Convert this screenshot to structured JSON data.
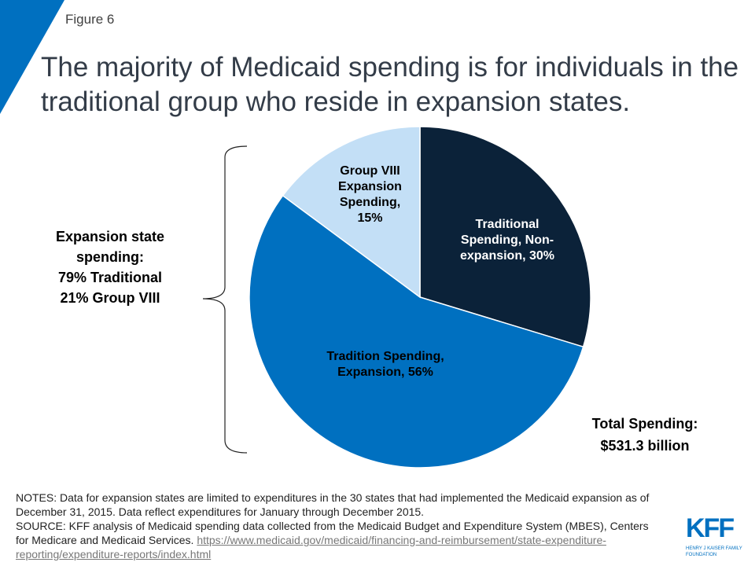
{
  "figure_label": "Figure 6",
  "title": "The majority of Medicaid spending is for individuals in the traditional group who reside in expansion states.",
  "colors": {
    "accent": "#0070c0",
    "navy": "#0b2239",
    "light_blue": "#c3dff6"
  },
  "chart_data": {
    "type": "pie",
    "start": "top",
    "direction": "clockwise",
    "slices": [
      {
        "label": "Traditional Spending, Non-expansion, 30%",
        "value": 30,
        "color": "#0b2239",
        "text_color": "#ffffff"
      },
      {
        "label": "Tradition Spending, Expansion, 56%",
        "value": 56,
        "color": "#0070c0",
        "text_color": "#000000"
      },
      {
        "label": "Group VIII Expansion Spending, 15%",
        "value": 15,
        "color": "#c3dff6",
        "text_color": "#000000"
      }
    ]
  },
  "annotations": {
    "bracket_label": [
      "Expansion state",
      "spending:",
      "79% Traditional",
      "21% Group VIII"
    ],
    "total": [
      "Total Spending:",
      "$531.3 billion"
    ]
  },
  "notes": {
    "notes_text": "NOTES: Data for expansion states are limited to expenditures in the 30 states that had implemented the Medicaid expansion as of December 31, 2015. Data reflect expenditures for January through December 2015.",
    "source_text": "SOURCE: KFF analysis of Medicaid spending data collected from the Medicaid Budget and Expenditure System (MBES), Centers for Medicare and Medicaid Services. ",
    "source_link": "https://www.medicaid.gov/medicaid/financing-and-reimbursement/state-expenditure-reporting/expenditure-reports/index.html"
  },
  "logo": {
    "mark": "KFF",
    "subtitle": "HENRY J KAISER FAMILY FOUNDATION"
  }
}
